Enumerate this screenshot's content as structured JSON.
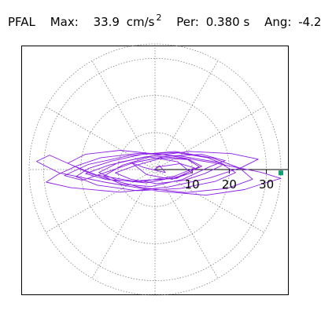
{
  "header": {
    "station": "PFAL",
    "max_label": "Max:",
    "max_value": "33.9",
    "max_unit": "cm/s",
    "max_unit_exp": "2",
    "per_label": "Per:",
    "per_value": "0.380 s",
    "ang_label": "Ang:",
    "ang_value": "-4.2"
  },
  "chart_data": {
    "type": "line",
    "title": "PFAL  Max: 33.9 cm/s2  Per: 0.380 s  Ang: -4.2",
    "polar": true,
    "radial_max": 33.9,
    "radial_ticks": [
      10,
      20,
      30
    ],
    "radial_tick_labels": [
      "10",
      "20",
      "30"
    ],
    "grid": true,
    "rings": [
      10,
      20,
      30
    ],
    "spokes_deg": [
      0,
      30,
      60,
      90,
      120,
      150,
      180,
      210,
      240,
      270,
      300,
      330
    ],
    "series": [
      {
        "color": "#8a1ee6",
        "description_points_note": "",
        "x": [
          0,
          1.2,
          2.8,
          -3.1,
          -6.4,
          -2.2,
          4.6,
          9.8,
          6.1,
          -1.4,
          -8.7,
          -13.9,
          -9.2,
          -1.1,
          7.4,
          14.8,
          18.9,
          12.5,
          3.2,
          -5.6,
          -12.8,
          -19.6,
          -24.4,
          -17.9,
          -6.8,
          5.4,
          15.6,
          22.8,
          26.3,
          19.4,
          8.2,
          -3.9,
          -14.2,
          -22.6,
          -28.4,
          -31.9,
          -25.8,
          -13.6,
          0.9,
          13.8,
          24.1,
          29.7,
          33.9,
          28.4,
          16.9,
          3.1,
          -9.4,
          -18.8,
          -23.5,
          -17.2,
          -6.1,
          5.8,
          11.9,
          8.4,
          -0.7,
          -9.8,
          -15.1,
          -10.3,
          -2.4,
          6.3,
          12.6,
          9.1,
          1.8,
          -4.9,
          -10.7,
          -6.5,
          0.4,
          7.8,
          13.4,
          18.6,
          14.2,
          5.7,
          -3.4,
          -11.6,
          -17.9,
          -21.3,
          -15.6,
          -4.8,
          6.9,
          16.2,
          21.7,
          17.3,
          7.1,
          -4.2,
          -14.6,
          -20.8,
          -26.1,
          -29.3,
          -22.7,
          -9.5,
          3.6,
          14.9,
          23.4,
          27.8,
          20.6,
          9.3,
          -2.8,
          -12.4,
          -18.7,
          -13.1,
          -3.9,
          5.2,
          10.7,
          6.8,
          0.2
        ],
        "y": [
          0,
          1.1,
          -0.8,
          0.6,
          1.9,
          -1.4,
          -2.6,
          -0.9,
          2.1,
          3.4,
          1.2,
          -1.8,
          -3.9,
          -4.6,
          -2.7,
          0.8,
          2.4,
          4.1,
          3.6,
          1.9,
          -0.6,
          -2.9,
          -1.6,
          1.4,
          3.8,
          4.9,
          3.1,
          0.4,
          -2.6,
          -5.1,
          -6.2,
          -4.8,
          -2.1,
          1.3,
          3.9,
          2.2,
          -0.9,
          -3.4,
          -5.8,
          -6.9,
          -5.4,
          -3.6,
          -2.4,
          -0.7,
          1.6,
          3.9,
          5.2,
          4.1,
          1.7,
          -1.2,
          -3.1,
          -2.4,
          0.8,
          2.9,
          3.7,
          1.9,
          -0.8,
          -2.8,
          -3.6,
          -1.9,
          0.9,
          2.7,
          3.1,
          1.2,
          -0.9,
          -2.6,
          -3.8,
          -2.9,
          -1.1,
          1.4,
          3.2,
          4.6,
          4.1,
          2.3,
          0.3,
          -1.9,
          -4.2,
          -5.7,
          -5.1,
          -3.2,
          -0.8,
          1.9,
          3.6,
          4.4,
          3.2,
          1.1,
          -1.3,
          -3.4,
          -4.9,
          -6.1,
          -4.7,
          -2.2,
          0.6,
          2.8,
          4.3,
          4.9,
          3.4,
          1.2,
          -1.1,
          -2.7,
          -3.3,
          -1.8,
          0.4,
          1.6,
          0.6
        ]
      }
    ],
    "endpoint_marker": {
      "color": "#10a070",
      "x": 33.9,
      "y": -0.9
    }
  }
}
